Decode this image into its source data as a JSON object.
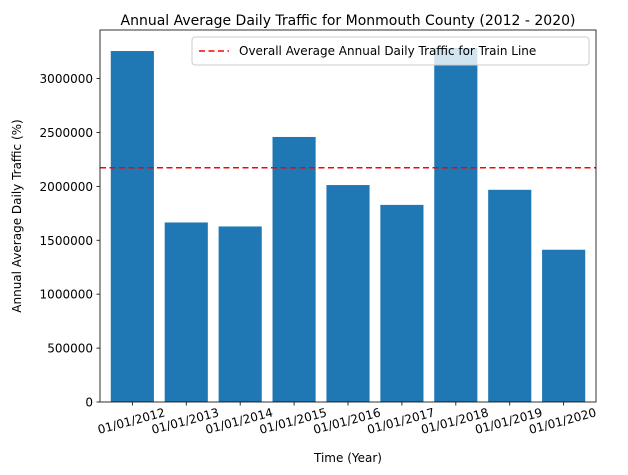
{
  "chart_data": {
    "type": "bar",
    "title": "Annual Average Daily Traffic for Monmouth County (2012 - 2020)",
    "xlabel": "Time (Year)",
    "ylabel": "Annual Average Daily Traffic (%)",
    "categories": [
      "01/01/2012",
      "01/01/2013",
      "01/01/2014",
      "01/01/2015",
      "01/01/2016",
      "01/01/2017",
      "01/01/2018",
      "01/01/2019",
      "01/01/2020"
    ],
    "values": [
      3255000,
      1665000,
      1628000,
      2458000,
      2012000,
      1828000,
      3283000,
      1968000,
      1412000
    ],
    "ylim": [
      0,
      3450000
    ],
    "yticks": [
      0,
      500000,
      1000000,
      1500000,
      2000000,
      2500000,
      3000000
    ],
    "ytick_labels": [
      "0",
      "500000",
      "1000000",
      "1500000",
      "2000000",
      "2500000",
      "3000000"
    ],
    "reference_line": {
      "value": 2172000,
      "label": "Overall Average Annual Daily Traffic for Train Line",
      "color": "#ff0000",
      "style": "dashed"
    },
    "bar_color": "#1f77b4",
    "legend_position": "top-right",
    "grid": false,
    "xtick_rotation": "15 degrees"
  }
}
